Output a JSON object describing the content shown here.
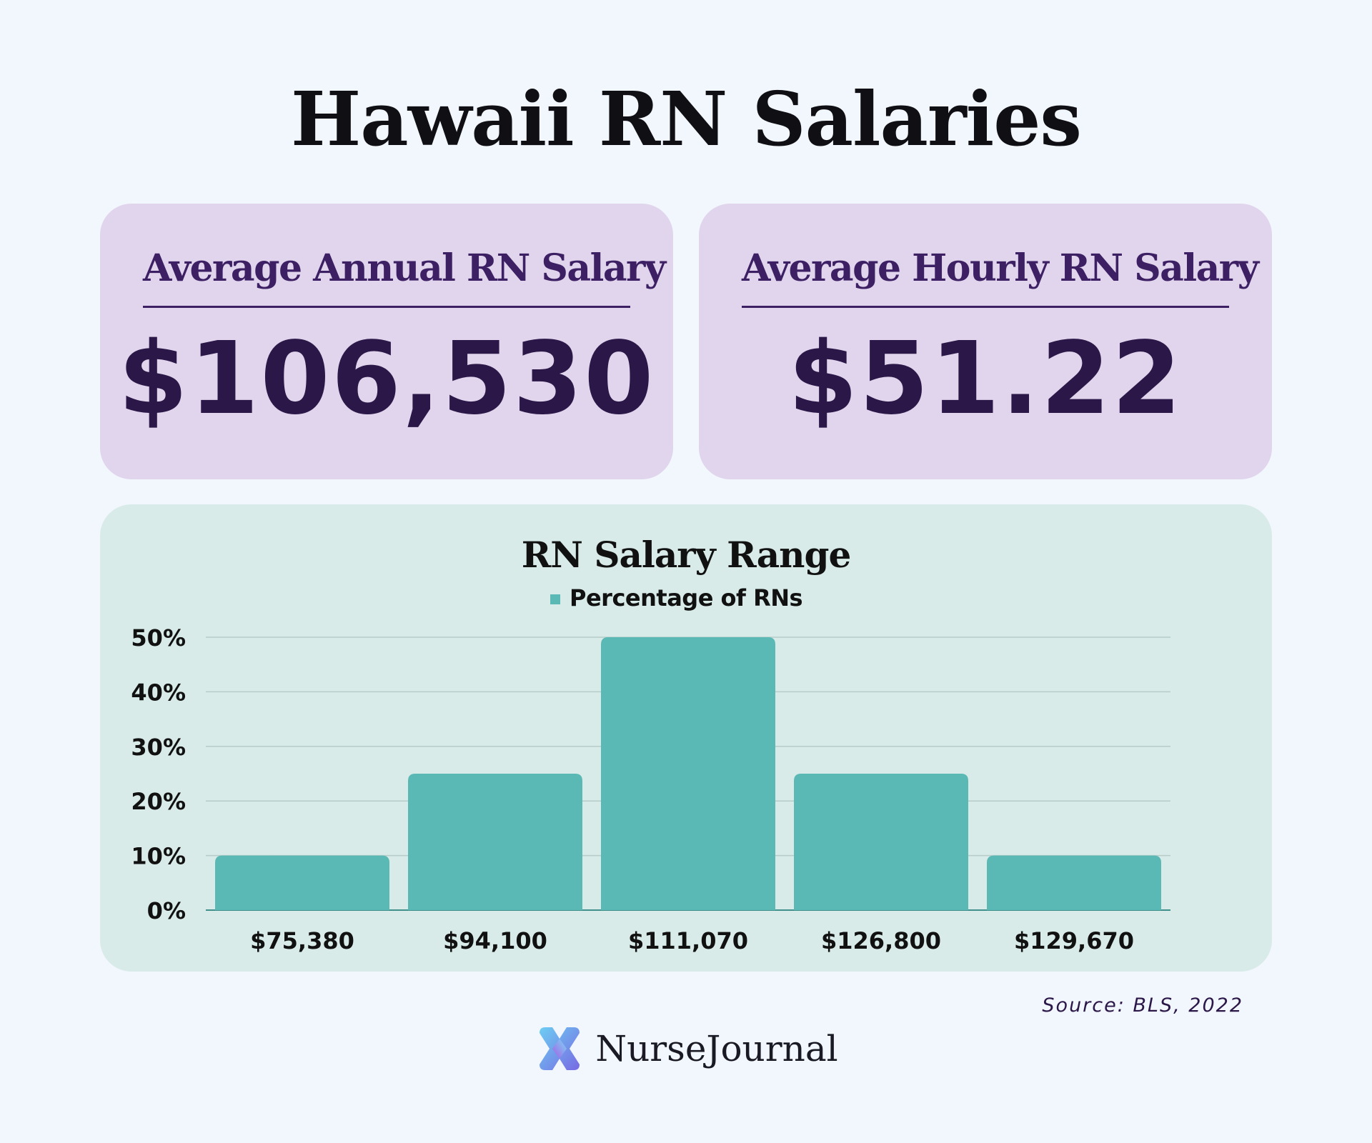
{
  "page": {
    "title": "Hawaii RN Salaries"
  },
  "stats": {
    "annual": {
      "label": "Average Annual RN Salary",
      "value": "$106,530"
    },
    "hourly": {
      "label": "Average Hourly RN Salary",
      "value": "$51.22"
    }
  },
  "chart_data": {
    "type": "bar",
    "title": "RN Salary Range",
    "categories": [
      "$75,380",
      "$94,100",
      "$111,070",
      "$126,800",
      "$129,670"
    ],
    "series": [
      {
        "name": "Percentage of RNs",
        "values": [
          10,
          25,
          50,
          25,
          10
        ]
      }
    ],
    "ylim": [
      0,
      50
    ],
    "yticks": [
      0,
      10,
      20,
      30,
      40,
      50
    ],
    "ytick_labels": [
      "0%",
      "10%",
      "20%",
      "30%",
      "40%",
      "50%"
    ],
    "grid": true,
    "legend": "top-center",
    "color": "#5ab9b5"
  },
  "footer": {
    "source": "Source: BLS, 2022",
    "brand": "NurseJournal"
  },
  "icons": {
    "logo": "nursejournal-logo-icon"
  }
}
